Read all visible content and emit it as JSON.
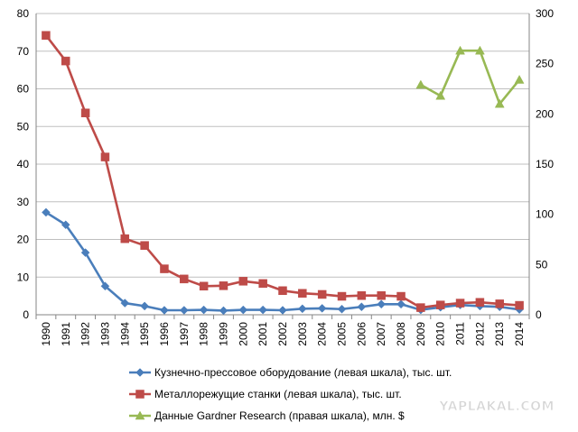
{
  "chart_data": {
    "type": "line",
    "title": "",
    "categories": [
      "1990",
      "1991",
      "1992",
      "1993",
      "1994",
      "1995",
      "1996",
      "1997",
      "1998",
      "1999",
      "2000",
      "2001",
      "2002",
      "2003",
      "2004",
      "2005",
      "2006",
      "2007",
      "2008",
      "2009",
      "2010",
      "2011",
      "2012",
      "2013",
      "2014"
    ],
    "y_left": {
      "ylim": [
        0,
        80
      ],
      "ticks": [
        "0",
        "10",
        "20",
        "30",
        "40",
        "50",
        "60",
        "70",
        "80"
      ]
    },
    "y_right": {
      "ylim": [
        0,
        300
      ],
      "ticks": [
        "0",
        "50",
        "100",
        "150",
        "200",
        "250",
        "300"
      ]
    },
    "grid": true,
    "legend_position": "bottom",
    "series": [
      {
        "name": "Кузнечно-прессовое оборудование (левая шкала), тыс. шт.",
        "axis": "left",
        "marker": "diamond",
        "color": "#4a7ebb",
        "values": [
          27.2,
          23.9,
          16.5,
          7.6,
          3.1,
          2.3,
          1.2,
          1.2,
          1.3,
          1.1,
          1.3,
          1.3,
          1.2,
          1.6,
          1.7,
          1.5,
          2.1,
          2.8,
          2.8,
          1.3,
          2.0,
          2.6,
          2.3,
          2.1,
          1.4
        ]
      },
      {
        "name": "Металлорежущие станки (левая шкала), тыс. шт.",
        "axis": "left",
        "marker": "square",
        "color": "#be4b48",
        "values": [
          74.2,
          67.4,
          53.6,
          41.9,
          20.2,
          18.4,
          12.2,
          9.5,
          7.6,
          7.7,
          8.9,
          8.3,
          6.4,
          5.7,
          5.4,
          4.9,
          5.1,
          5.1,
          4.9,
          1.9,
          2.6,
          3.1,
          3.3,
          2.9,
          2.5
        ]
      },
      {
        "name": "Данные Gardner Research (правая шкала), млн. $",
        "axis": "right",
        "marker": "triangle",
        "color": "#98b954",
        "values": [
          null,
          null,
          null,
          null,
          null,
          null,
          null,
          null,
          null,
          null,
          null,
          null,
          null,
          null,
          null,
          null,
          null,
          null,
          null,
          229,
          218,
          263,
          263,
          210,
          234
        ]
      }
    ]
  },
  "watermark": "YAPLAKAL.COM",
  "colors": {
    "grid": "#bfbfbf",
    "axis": "#868686"
  }
}
